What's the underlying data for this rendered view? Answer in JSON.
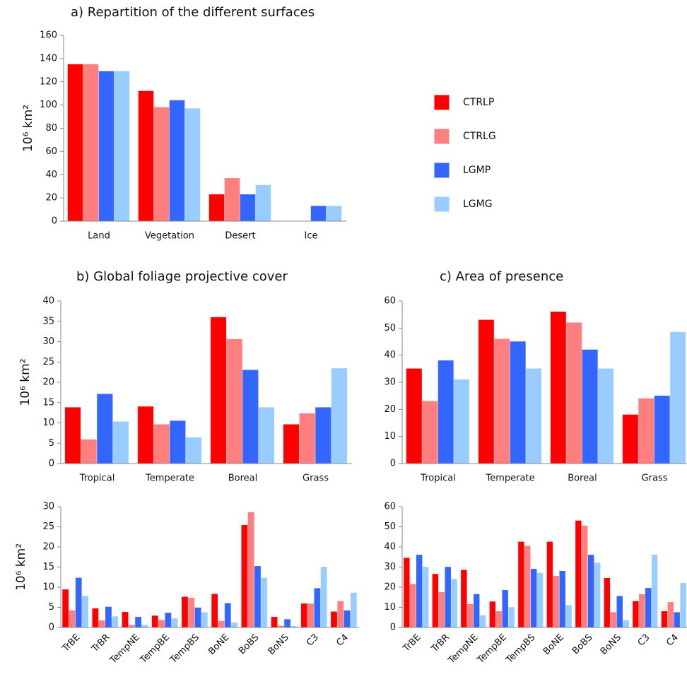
{
  "chart_data": [
    {
      "type": "bar",
      "title": "a) Repartition of the different surfaces",
      "ylabel": "10⁶ km²",
      "categories": [
        "Land",
        "Vegetation",
        "Desert",
        "Ice"
      ],
      "series": [
        {
          "name": "CTRLP",
          "color": "#ff0000",
          "values": [
            135,
            112,
            23,
            0
          ]
        },
        {
          "name": "CTRLG",
          "color": "#ff7f7f",
          "values": [
            135,
            98,
            37,
            0
          ]
        },
        {
          "name": "LGMP",
          "color": "#3366ff",
          "values": [
            129,
            104,
            23,
            13
          ]
        },
        {
          "name": "LGMG",
          "color": "#99ccff",
          "values": [
            129,
            97,
            31,
            13
          ]
        }
      ],
      "ylim": [
        0,
        160
      ],
      "yticks": [
        0,
        20,
        40,
        60,
        80,
        100,
        120,
        140,
        160
      ],
      "legend": "right"
    },
    {
      "type": "bar",
      "title": "b) Global foliage projective cover",
      "ylabel": "10⁶ km²",
      "categories": [
        "Tropical",
        "Temperate",
        "Boreal",
        "Grass"
      ],
      "series": [
        {
          "name": "CTRLP",
          "color": "#ff0000",
          "values": [
            13.8,
            14,
            36,
            9.6
          ]
        },
        {
          "name": "CTRLG",
          "color": "#ff7f7f",
          "values": [
            5.9,
            9.6,
            30.6,
            12.3
          ]
        },
        {
          "name": "LGMP",
          "color": "#3366ff",
          "values": [
            17.1,
            10.5,
            23,
            13.8
          ]
        },
        {
          "name": "LGMG",
          "color": "#99ccff",
          "values": [
            10.3,
            6.4,
            13.8,
            23.4
          ]
        }
      ],
      "ylim": [
        0,
        40
      ],
      "yticks": [
        0,
        5,
        10,
        15,
        20,
        25,
        30,
        35,
        40
      ]
    },
    {
      "type": "bar",
      "title": "c) Area of presence",
      "categories": [
        "Tropical",
        "Temperate",
        "Boreal",
        "Grass"
      ],
      "series": [
        {
          "name": "CTRLP",
          "color": "#ff0000",
          "values": [
            35,
            53,
            56,
            18
          ]
        },
        {
          "name": "CTRLG",
          "color": "#ff7f7f",
          "values": [
            23,
            46,
            52,
            24
          ]
        },
        {
          "name": "LGMP",
          "color": "#3366ff",
          "values": [
            38,
            45,
            42,
            25
          ]
        },
        {
          "name": "LGMG",
          "color": "#99ccff",
          "values": [
            31,
            35,
            35,
            48.5
          ]
        }
      ],
      "ylim": [
        0,
        60
      ],
      "yticks": [
        0,
        10,
        20,
        30,
        40,
        50,
        60
      ]
    },
    {
      "type": "bar",
      "ylabel": "10⁶ km²",
      "categories": [
        "TrBE",
        "TrBR",
        "TempNE",
        "TempBE",
        "TempBS",
        "BoNE",
        "BoBS",
        "BoNS",
        "C3",
        "C4"
      ],
      "series": [
        {
          "name": "CTRLP",
          "color": "#ff0000",
          "values": [
            9.4,
            4.7,
            3.8,
            2.9,
            7.6,
            8.3,
            25.4,
            2.6,
            5.9,
            3.9
          ]
        },
        {
          "name": "CTRLG",
          "color": "#ff7f7f",
          "values": [
            4.2,
            1.7,
            0.6,
            1.8,
            7.3,
            1.6,
            28.6,
            0.4,
            5.9,
            6.5
          ]
        },
        {
          "name": "LGMP",
          "color": "#3366ff",
          "values": [
            12.3,
            5.1,
            2.6,
            3.6,
            4.9,
            6.0,
            15.2,
            2.0,
            9.7,
            4.2
          ]
        },
        {
          "name": "LGMG",
          "color": "#99ccff",
          "values": [
            7.8,
            2.7,
            0.6,
            2.2,
            3.7,
            1.2,
            12.3,
            0.3,
            15.0,
            8.6
          ]
        }
      ],
      "ylim": [
        0,
        30
      ],
      "yticks": [
        0,
        5,
        10,
        15,
        20,
        25,
        30
      ],
      "xtick_rotation": 45
    },
    {
      "type": "bar",
      "categories": [
        "TrBE",
        "TrBR",
        "TempNE",
        "TempBE",
        "TempBS",
        "BoNE",
        "BoBS",
        "BoNS",
        "C3",
        "C4"
      ],
      "series": [
        {
          "name": "CTRLP",
          "color": "#ff0000",
          "values": [
            34.5,
            26.5,
            28.5,
            12.8,
            42.5,
            42.5,
            53,
            24.5,
            13,
            8
          ]
        },
        {
          "name": "CTRLG",
          "color": "#ff7f7f",
          "values": [
            21.5,
            17.5,
            11.5,
            8,
            40.5,
            25.5,
            50.5,
            7.5,
            16.5,
            12.5
          ]
        },
        {
          "name": "LGMP",
          "color": "#3366ff",
          "values": [
            36,
            30,
            16.5,
            18.5,
            29,
            28,
            36,
            15.5,
            19.5,
            7.5
          ]
        },
        {
          "name": "LGMG",
          "color": "#99ccff",
          "values": [
            30,
            24,
            6,
            10,
            27,
            11,
            32,
            3.5,
            36,
            22
          ]
        }
      ],
      "ylim": [
        0,
        60
      ],
      "yticks": [
        0,
        10,
        20,
        30,
        40,
        50,
        60
      ],
      "xtick_rotation": 45
    }
  ]
}
